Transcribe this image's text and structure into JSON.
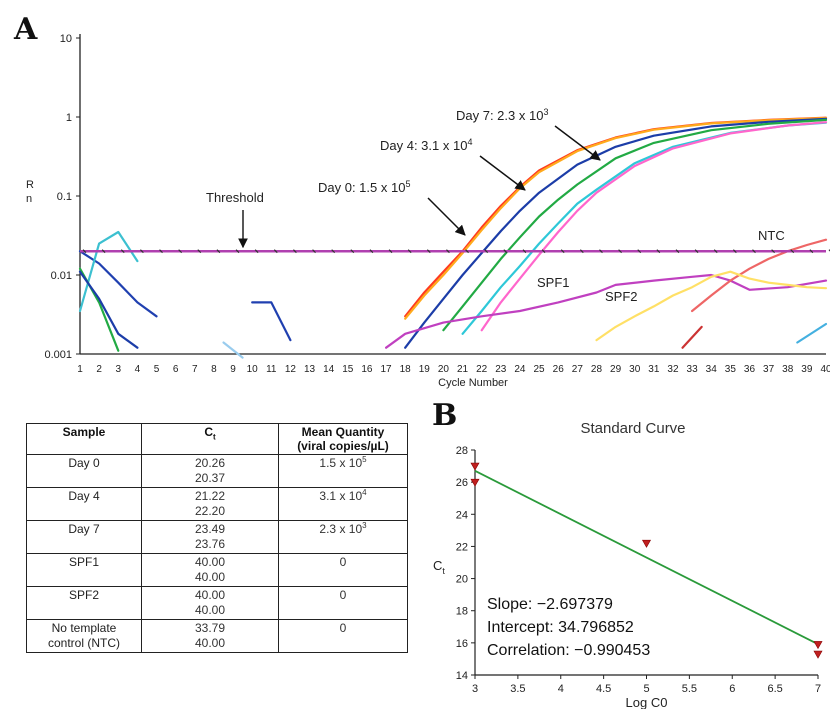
{
  "panel_a": {
    "badge": "A",
    "chart_data": {
      "type": "line",
      "ylabel": "Rn",
      "xlabel": "Cycle Number",
      "yscale": "log",
      "ylim": [
        0.001,
        10
      ],
      "xlim": [
        1,
        40
      ],
      "y_ticks": [
        "10",
        "1",
        "0.1",
        "0.01",
        "0.001"
      ],
      "y_tick_values": [
        10,
        1,
        0.1,
        0.01,
        0.001
      ],
      "x_ticks": [
        1,
        2,
        3,
        4,
        5,
        6,
        7,
        8,
        9,
        10,
        11,
        12,
        13,
        14,
        15,
        16,
        17,
        18,
        19,
        20,
        21,
        22,
        23,
        24,
        25,
        26,
        27,
        28,
        29,
        30,
        31,
        32,
        33,
        34,
        35,
        36,
        37,
        38,
        39,
        40
      ],
      "threshold": {
        "label": "Threshold",
        "value": 0.02,
        "color": "#b040b0"
      },
      "annotations": [
        {
          "label": "Day 7: 2.3 x 10",
          "exp": "3"
        },
        {
          "label": "Day 4: 3.1 x 10",
          "exp": "4"
        },
        {
          "label": "Day 0: 1.5 x 10",
          "exp": "5"
        },
        {
          "label": "NTC",
          "exp": ""
        },
        {
          "label": "SPF1",
          "exp": ""
        },
        {
          "label": "SPF2",
          "exp": ""
        }
      ],
      "series": [
        {
          "color": "#ff3b1f",
          "x": [
            18,
            19,
            20,
            21,
            22,
            23,
            24,
            25,
            27,
            29,
            31,
            34,
            37,
            40
          ],
          "y": [
            0.003,
            0.006,
            0.011,
            0.02,
            0.04,
            0.075,
            0.13,
            0.21,
            0.38,
            0.55,
            0.7,
            0.84,
            0.92,
            0.98
          ]
        },
        {
          "color": "#ffaa1c",
          "x": [
            18,
            19,
            20,
            21,
            22,
            23,
            24,
            25,
            27,
            29,
            31,
            34,
            37,
            40
          ],
          "y": [
            0.0028,
            0.0055,
            0.01,
            0.019,
            0.037,
            0.07,
            0.125,
            0.2,
            0.37,
            0.54,
            0.69,
            0.83,
            0.91,
            0.97
          ]
        },
        {
          "color": "#1c3da8",
          "x": [
            18,
            19,
            20,
            21,
            22,
            23,
            24,
            25,
            27,
            29,
            31,
            34,
            37,
            40
          ],
          "y": [
            0.0012,
            0.0025,
            0.005,
            0.01,
            0.019,
            0.036,
            0.065,
            0.11,
            0.25,
            0.42,
            0.58,
            0.76,
            0.87,
            0.95
          ]
        },
        {
          "color": "#22aa44",
          "x": [
            20,
            21,
            22,
            23,
            24,
            25,
            26,
            27,
            29,
            31,
            34,
            37,
            40
          ],
          "y": [
            0.002,
            0.004,
            0.008,
            0.016,
            0.03,
            0.055,
            0.09,
            0.14,
            0.3,
            0.47,
            0.68,
            0.82,
            0.92
          ]
        },
        {
          "color": "#2ec8d8",
          "x": [
            21,
            22,
            23,
            24,
            25,
            26,
            27,
            28,
            30,
            32,
            35,
            38,
            40
          ],
          "y": [
            0.0018,
            0.0035,
            0.007,
            0.013,
            0.025,
            0.045,
            0.08,
            0.12,
            0.26,
            0.42,
            0.63,
            0.78,
            0.85
          ]
        },
        {
          "color": "#ff66cc",
          "x": [
            22,
            23,
            24,
            25,
            26,
            27,
            28,
            30,
            32,
            35,
            38,
            40
          ],
          "y": [
            0.002,
            0.0045,
            0.009,
            0.018,
            0.035,
            0.065,
            0.11,
            0.24,
            0.4,
            0.62,
            0.78,
            0.86
          ]
        },
        {
          "color": "#c040c0",
          "x": [
            17,
            18,
            20,
            22,
            24,
            26,
            28,
            29,
            31,
            33,
            34,
            35,
            36,
            38,
            40
          ],
          "y": [
            0.0012,
            0.0018,
            0.0025,
            0.003,
            0.0035,
            0.0045,
            0.006,
            0.0075,
            0.0085,
            0.0095,
            0.01,
            0.0085,
            0.0065,
            0.007,
            0.0085
          ]
        },
        {
          "color": "#ee6666",
          "x": [
            33,
            34,
            35,
            36,
            37,
            38,
            39,
            40
          ],
          "y": [
            0.0035,
            0.0055,
            0.0085,
            0.012,
            0.016,
            0.02,
            0.024,
            0.028
          ]
        },
        {
          "color": "#ffe066",
          "x": [
            28,
            29,
            30,
            31,
            32,
            33,
            34,
            35,
            36,
            37,
            38,
            39,
            40
          ],
          "y": [
            0.0015,
            0.0022,
            0.003,
            0.004,
            0.0055,
            0.007,
            0.0095,
            0.011,
            0.009,
            0.008,
            0.0075,
            0.007,
            0.0068
          ]
        },
        {
          "color": "#cc3333",
          "x": [
            32.5,
            33.5
          ],
          "y": [
            0.0012,
            0.0022
          ]
        },
        {
          "color": "#44b0e0",
          "x": [
            38.5,
            40
          ],
          "y": [
            0.0014,
            0.0024
          ]
        },
        {
          "color": "#2040b0",
          "x": [
            1,
            2,
            3,
            4,
            5
          ],
          "y": [
            0.02,
            0.014,
            0.008,
            0.0045,
            0.003
          ]
        },
        {
          "color": "#3cc0d0",
          "x": [
            1,
            2,
            3,
            4
          ],
          "y": [
            0.0035,
            0.025,
            0.035,
            0.015
          ]
        },
        {
          "color": "#22aa44",
          "x": [
            1,
            2,
            3
          ],
          "y": [
            0.012,
            0.0045,
            0.0011
          ]
        },
        {
          "color": "#1c3da8",
          "x": [
            1,
            2,
            3,
            4
          ],
          "y": [
            0.011,
            0.005,
            0.0018,
            0.0012
          ]
        },
        {
          "color": "#2040b0",
          "x": [
            10,
            11,
            12
          ],
          "y": [
            0.0045,
            0.0045,
            0.0015
          ]
        },
        {
          "color": "#99ccee",
          "x": [
            8.5,
            9.5
          ],
          "y": [
            0.0014,
            0.0009
          ]
        }
      ]
    }
  },
  "table": {
    "headers": {
      "sample": "Sample",
      "ct_base": "C",
      "ct_sub": "t",
      "mean_line1": "Mean Quantity",
      "mean_line2": "(viral copies/µL)"
    },
    "rows": [
      {
        "sample_line1": "Day 0",
        "sample_line2": "",
        "ct1": "20.26",
        "ct2": "20.37",
        "mean_base": "1.5 x 10",
        "mean_exp": "5"
      },
      {
        "sample_line1": "Day 4",
        "sample_line2": "",
        "ct1": "21.22",
        "ct2": "22.20",
        "mean_base": "3.1 x 10",
        "mean_exp": "4"
      },
      {
        "sample_line1": "Day 7",
        "sample_line2": "",
        "ct1": "23.49",
        "ct2": "23.76",
        "mean_base": "2.3 x 10",
        "mean_exp": "3"
      },
      {
        "sample_line1": "SPF1",
        "sample_line2": "",
        "ct1": "40.00",
        "ct2": "40.00",
        "mean_base": "0",
        "mean_exp": ""
      },
      {
        "sample_line1": "SPF2",
        "sample_line2": "",
        "ct1": "40.00",
        "ct2": "40.00",
        "mean_base": "0",
        "mean_exp": ""
      },
      {
        "sample_line1": "No template",
        "sample_line2": "control (NTC)",
        "ct1": "33.79",
        "ct2": "40.00",
        "mean_base": "0",
        "mean_exp": ""
      }
    ]
  },
  "panel_b": {
    "badge": "B",
    "chart_data": {
      "type": "scatter",
      "title": "Standard Curve",
      "xlabel": "Log C0",
      "ylabel_base": "C",
      "ylabel_sub": "t",
      "xlim": [
        3,
        7
      ],
      "ylim": [
        14,
        28
      ],
      "x_ticks": [
        "3",
        "3.5",
        "4",
        "4.5",
        "5",
        "5.5",
        "6",
        "6.5",
        "7"
      ],
      "x_tick_values": [
        3,
        3.5,
        4,
        4.5,
        5,
        5.5,
        6,
        6.5,
        7
      ],
      "y_ticks": [
        "28",
        "26",
        "24",
        "22",
        "20",
        "18",
        "16",
        "14"
      ],
      "y_tick_values": [
        28,
        26,
        24,
        22,
        20,
        18,
        16,
        14
      ],
      "points": [
        {
          "x": 3,
          "y": 27.0
        },
        {
          "x": 3,
          "y": 26.0
        },
        {
          "x": 5,
          "y": 22.2
        },
        {
          "x": 7,
          "y": 15.9
        },
        {
          "x": 7,
          "y": 15.3
        }
      ],
      "point_color": "#c02020",
      "fit": {
        "slope": -2.697379,
        "intercept": 34.796852,
        "color": "#2a9a3a"
      },
      "stats": [
        "Slope: −2.697379",
        "Intercept: 34.796852",
        "Correlation: −0.990453"
      ]
    }
  }
}
